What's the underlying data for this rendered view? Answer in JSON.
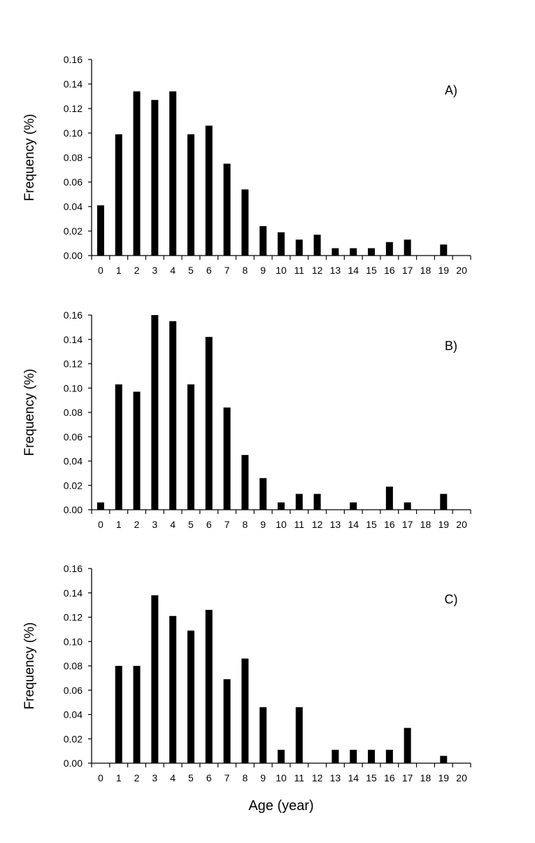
{
  "chart_data": [
    {
      "type": "bar",
      "panel_label": "A)",
      "xlabel": "",
      "ylabel": "Frequency (%)",
      "categories": [
        "0",
        "1",
        "2",
        "3",
        "4",
        "5",
        "6",
        "7",
        "8",
        "9",
        "10",
        "11",
        "12",
        "13",
        "14",
        "15",
        "16",
        "17",
        "18",
        "19",
        "20"
      ],
      "values": [
        0.041,
        0.099,
        0.134,
        0.127,
        0.134,
        0.099,
        0.106,
        0.075,
        0.054,
        0.024,
        0.019,
        0.013,
        0.017,
        0.006,
        0.006,
        0.006,
        0.011,
        0.013,
        0,
        0.009,
        0
      ],
      "yticks": [
        "0.00",
        "0.02",
        "0.04",
        "0.06",
        "0.08",
        "0.10",
        "0.12",
        "0.14",
        "0.16"
      ],
      "ylim": [
        0,
        0.16
      ]
    },
    {
      "type": "bar",
      "panel_label": "B)",
      "xlabel": "",
      "ylabel": "Frequency (%)",
      "categories": [
        "0",
        "1",
        "2",
        "3",
        "4",
        "5",
        "6",
        "7",
        "8",
        "9",
        "10",
        "11",
        "12",
        "13",
        "14",
        "15",
        "16",
        "17",
        "18",
        "19",
        "20"
      ],
      "values": [
        0.006,
        0.103,
        0.097,
        0.16,
        0.155,
        0.103,
        0.142,
        0.084,
        0.045,
        0.026,
        0.006,
        0.013,
        0.013,
        0,
        0.006,
        0,
        0.019,
        0.006,
        0,
        0.013,
        0
      ],
      "yticks": [
        "0.00",
        "0.02",
        "0.04",
        "0.06",
        "0.08",
        "0.10",
        "0.12",
        "0.14",
        "0.16"
      ],
      "ylim": [
        0,
        0.16
      ]
    },
    {
      "type": "bar",
      "panel_label": "C)",
      "xlabel": "Age (year)",
      "ylabel": "Frequency (%)",
      "categories": [
        "0",
        "1",
        "2",
        "3",
        "4",
        "5",
        "6",
        "7",
        "8",
        "9",
        "10",
        "11",
        "12",
        "13",
        "14",
        "15",
        "16",
        "17",
        "18",
        "19",
        "20"
      ],
      "values": [
        0,
        0.08,
        0.08,
        0.138,
        0.121,
        0.109,
        0.126,
        0.069,
        0.086,
        0.046,
        0.011,
        0.046,
        0,
        0.011,
        0.011,
        0.011,
        0.011,
        0.029,
        0,
        0.006,
        0
      ],
      "yticks": [
        "0.00",
        "0.02",
        "0.04",
        "0.06",
        "0.08",
        "0.10",
        "0.12",
        "0.14",
        "0.16"
      ],
      "ylim": [
        0,
        0.16
      ]
    }
  ]
}
